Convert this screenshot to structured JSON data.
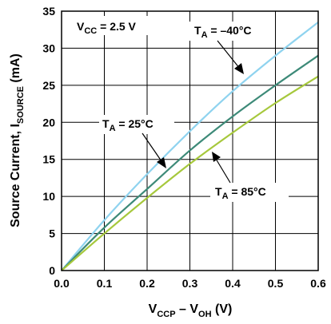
{
  "chart_data": {
    "type": "line",
    "xlabel": {
      "main": "V",
      "sub": "CCP",
      "mid": " – V",
      "sub2": "OH",
      "tail": " (V)"
    },
    "ylabel": {
      "main": "Source Current, I",
      "sub": "SOURCE",
      "tail": " (mA)"
    },
    "xlim": [
      0,
      0.6
    ],
    "ylim": [
      0,
      35
    ],
    "x_ticks": [
      0.0,
      0.1,
      0.2,
      0.3,
      0.4,
      0.5,
      0.6
    ],
    "x_tick_labels": [
      "0.0",
      "0.1",
      "0.2",
      "0.3",
      "0.4",
      "0.5",
      "0.6"
    ],
    "y_ticks": [
      0,
      5,
      10,
      15,
      20,
      25,
      30,
      35
    ],
    "y_tick_labels": [
      "0",
      "5",
      "10",
      "15",
      "20",
      "25",
      "30",
      "35"
    ],
    "grid": true,
    "series": [
      {
        "name": "T_A = –40°C",
        "color": "#8fd3ef",
        "x": [
          0,
          0.1,
          0.2,
          0.3,
          0.4,
          0.5,
          0.6
        ],
        "y": [
          0,
          6.8,
          13.0,
          18.8,
          24.2,
          29.0,
          33.5
        ]
      },
      {
        "name": "T_A = 25°C",
        "color": "#3d8a78",
        "x": [
          0,
          0.1,
          0.2,
          0.3,
          0.4,
          0.5,
          0.6
        ],
        "y": [
          0,
          5.8,
          11.0,
          16.2,
          20.8,
          25.0,
          29.0
        ]
      },
      {
        "name": "T_A = 85°C",
        "color": "#a6c83c",
        "x": [
          0,
          0.1,
          0.2,
          0.3,
          0.4,
          0.5,
          0.6
        ],
        "y": [
          0,
          5.0,
          9.8,
          14.4,
          18.6,
          22.6,
          26.2
        ]
      }
    ],
    "annotations": {
      "vcc": {
        "main": "V",
        "sub": "CC",
        "tail": " = 2.5 V"
      },
      "t_minus40": {
        "main": "T",
        "sub": "A",
        "tail": " = –40°C"
      },
      "t_25": {
        "main": "T",
        "sub": "A",
        "tail": " = 25°C"
      },
      "t_85": {
        "main": "T",
        "sub": "A",
        "tail": " = 85°C"
      }
    }
  }
}
